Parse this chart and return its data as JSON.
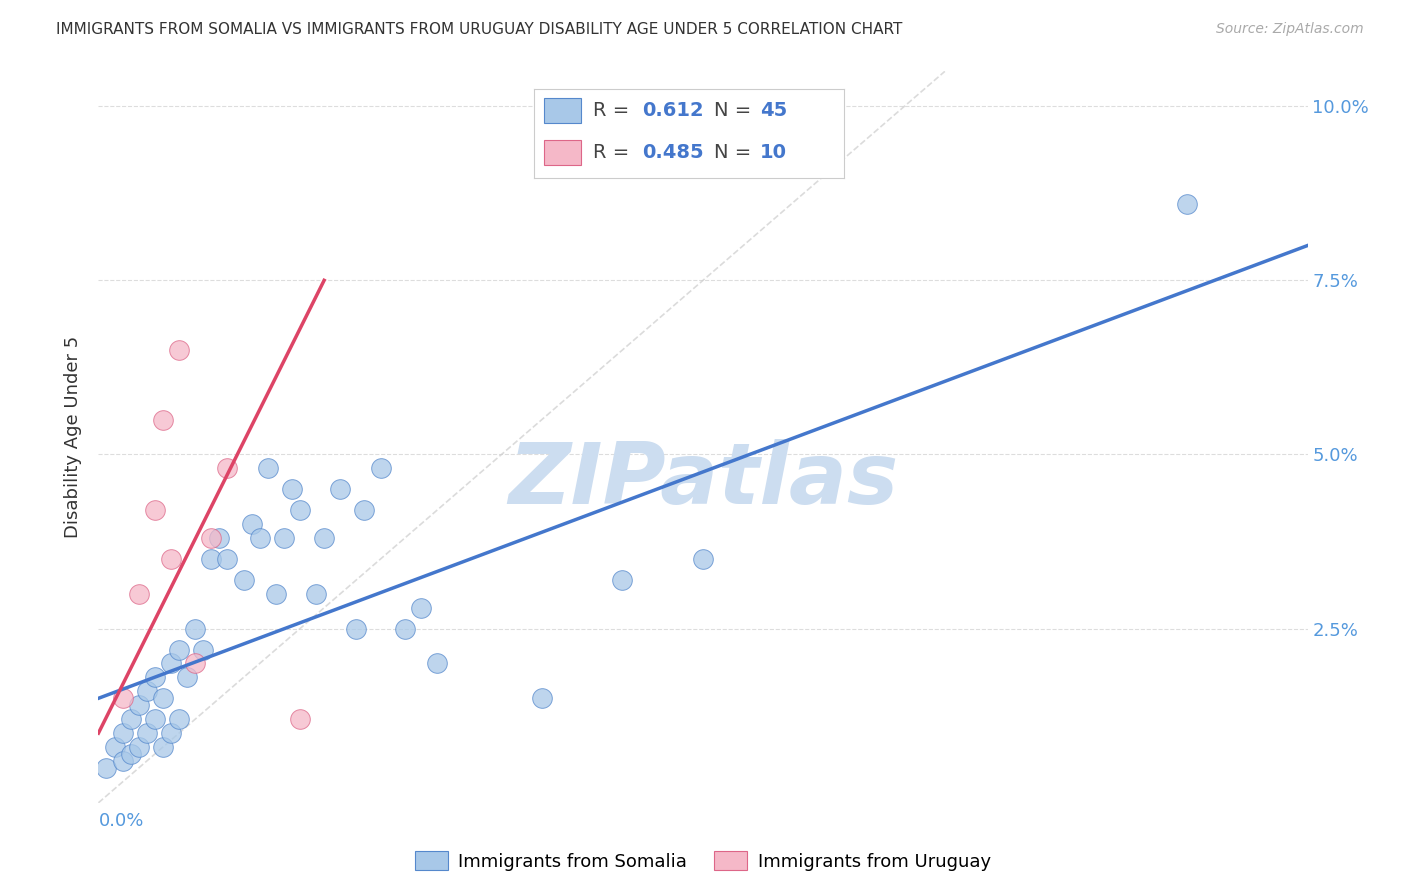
{
  "title": "IMMIGRANTS FROM SOMALIA VS IMMIGRANTS FROM URUGUAY DISABILITY AGE UNDER 5 CORRELATION CHART",
  "source": "Source: ZipAtlas.com",
  "ylabel": "Disability Age Under 5",
  "r_somalia": 0.612,
  "n_somalia": 45,
  "r_uruguay": 0.485,
  "n_uruguay": 10,
  "color_somalia": "#a8c8e8",
  "color_somalia_edge": "#5588cc",
  "color_uruguay": "#f5b8c8",
  "color_uruguay_edge": "#dd6688",
  "line_color_somalia": "#4477cc",
  "line_color_uruguay": "#dd4466",
  "diagonal_color": "#cccccc",
  "watermark_color": "#ccddf0",
  "background_color": "#ffffff",
  "grid_color": "#dddddd",
  "text_color": "#333333",
  "axis_label_color": "#5599dd",
  "xlim": [
    0.0,
    0.15
  ],
  "ylim": [
    0.0,
    0.105
  ],
  "xtick_positions": [
    0.0,
    0.05,
    0.1,
    0.15
  ],
  "ytick_positions": [
    0.0,
    0.025,
    0.05,
    0.075,
    0.1
  ],
  "ytick_labels": [
    "",
    "2.5%",
    "5.0%",
    "7.5%",
    "10.0%"
  ],
  "legend_somalia": "Immigrants from Somalia",
  "legend_uruguay": "Immigrants from Uruguay",
  "somalia_x": [
    0.001,
    0.002,
    0.003,
    0.003,
    0.004,
    0.004,
    0.005,
    0.005,
    0.006,
    0.006,
    0.007,
    0.007,
    0.008,
    0.008,
    0.009,
    0.009,
    0.01,
    0.01,
    0.011,
    0.012,
    0.013,
    0.014,
    0.015,
    0.016,
    0.018,
    0.019,
    0.02,
    0.021,
    0.022,
    0.023,
    0.024,
    0.025,
    0.027,
    0.028,
    0.03,
    0.032,
    0.033,
    0.035,
    0.038,
    0.04,
    0.042,
    0.055,
    0.065,
    0.075,
    0.135
  ],
  "somalia_y": [
    0.005,
    0.008,
    0.006,
    0.01,
    0.007,
    0.012,
    0.008,
    0.014,
    0.01,
    0.016,
    0.012,
    0.018,
    0.008,
    0.015,
    0.01,
    0.02,
    0.012,
    0.022,
    0.018,
    0.025,
    0.022,
    0.035,
    0.038,
    0.035,
    0.032,
    0.04,
    0.038,
    0.048,
    0.03,
    0.038,
    0.045,
    0.042,
    0.03,
    0.038,
    0.045,
    0.025,
    0.042,
    0.048,
    0.025,
    0.028,
    0.02,
    0.015,
    0.032,
    0.035,
    0.086
  ],
  "uruguay_x": [
    0.003,
    0.005,
    0.007,
    0.008,
    0.009,
    0.01,
    0.012,
    0.014,
    0.016,
    0.025
  ],
  "uruguay_y": [
    0.015,
    0.03,
    0.042,
    0.055,
    0.035,
    0.065,
    0.02,
    0.038,
    0.048,
    0.012
  ],
  "somalia_line_x": [
    0.0,
    0.15
  ],
  "somalia_line_y": [
    0.015,
    0.08
  ],
  "uruguay_line_x": [
    0.0,
    0.028
  ],
  "uruguay_line_y": [
    0.01,
    0.075
  ]
}
